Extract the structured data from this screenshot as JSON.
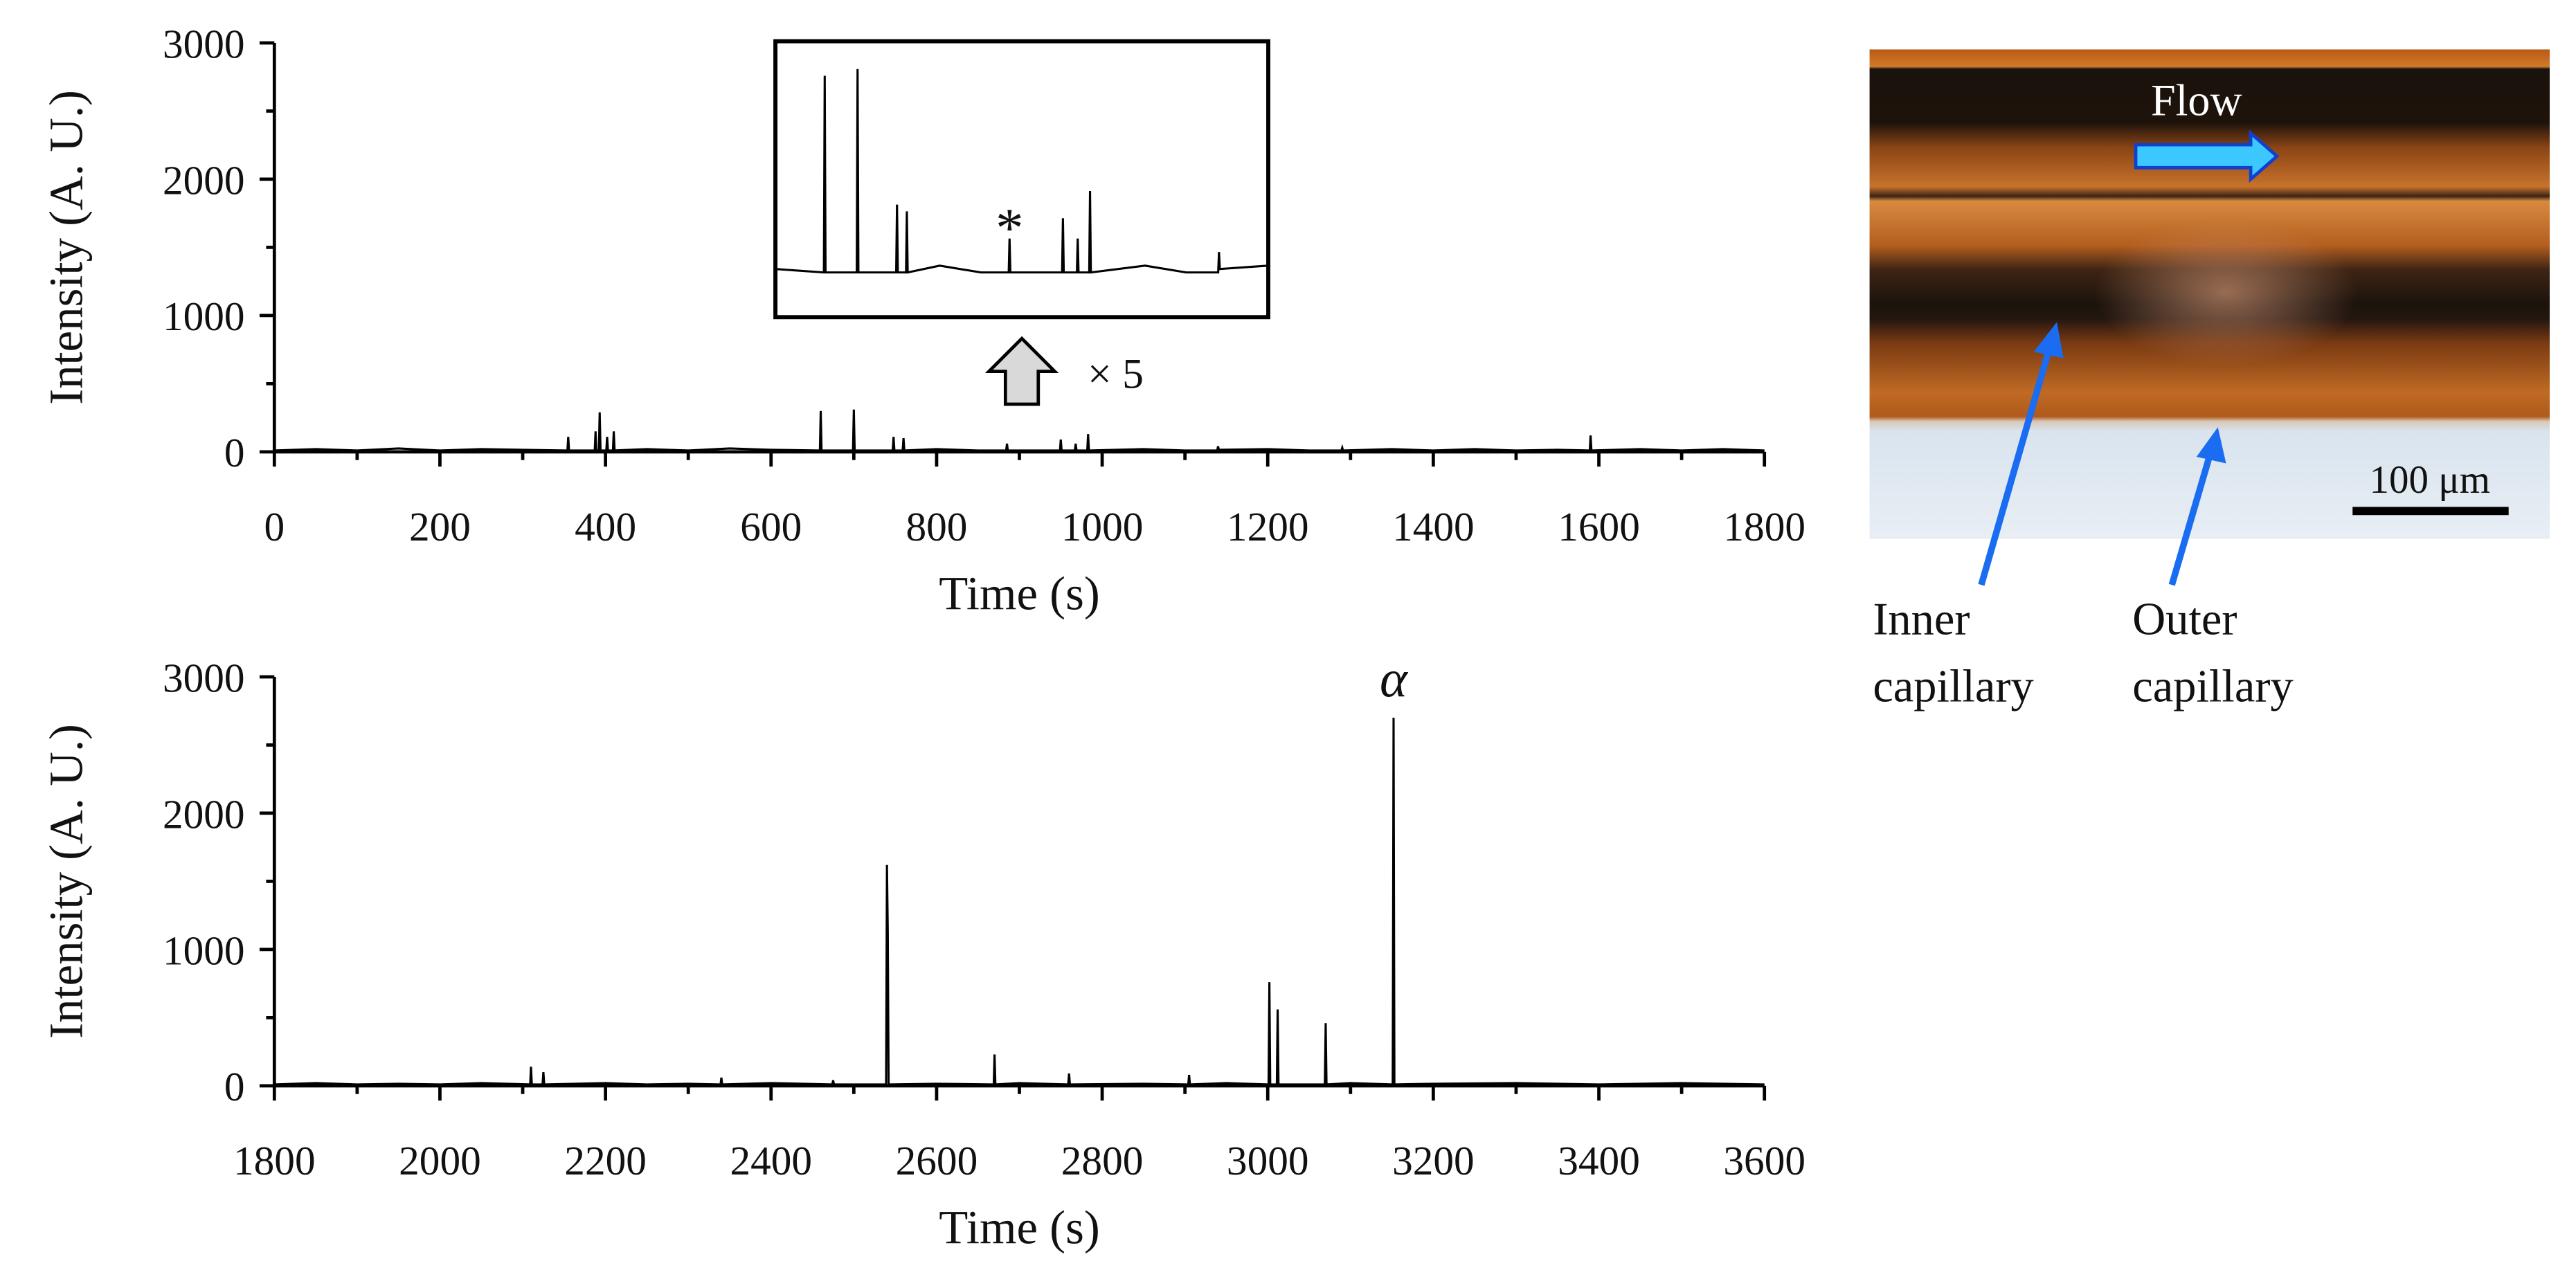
{
  "chart_data": [
    {
      "type": "line",
      "xlabel": "Time (s)",
      "ylabel": "Intensity (A. U.)",
      "color": "#000000",
      "xlim": [
        0,
        1800
      ],
      "xticks": [
        0,
        200,
        400,
        600,
        800,
        1000,
        1200,
        1400,
        1600,
        1800
      ],
      "xminorticks": [
        100,
        300,
        500,
        700,
        900,
        1100,
        1300,
        1500,
        1700
      ],
      "ylim": [
        0,
        3000
      ],
      "yticks": [
        0,
        1000,
        2000,
        3000
      ],
      "yminorticks": [
        500,
        1500,
        2500
      ],
      "x": [
        0,
        50,
        100,
        150,
        200,
        250,
        300,
        354,
        355,
        356,
        387,
        388,
        389,
        392,
        393,
        394,
        401,
        402,
        403,
        409,
        410,
        411,
        450,
        500,
        550,
        600,
        659,
        660,
        661,
        699,
        700,
        701,
        747,
        748,
        749,
        759,
        760,
        761,
        800,
        850,
        884,
        885,
        886,
        949,
        950,
        951,
        967,
        968,
        969,
        982,
        983,
        984,
        1050,
        1100,
        1139,
        1140,
        1141,
        1200,
        1250,
        1289,
        1290,
        1291,
        1350,
        1400,
        1450,
        1500,
        1550,
        1589,
        1590,
        1591,
        1650,
        1700,
        1750,
        1800
      ],
      "values": [
        10,
        20,
        10,
        25,
        10,
        20,
        15,
        10,
        110,
        10,
        10,
        150,
        10,
        10,
        290,
        10,
        10,
        110,
        10,
        10,
        150,
        10,
        20,
        10,
        25,
        15,
        10,
        300,
        10,
        10,
        310,
        10,
        10,
        110,
        10,
        10,
        100,
        10,
        20,
        10,
        10,
        60,
        10,
        10,
        90,
        10,
        10,
        60,
        10,
        10,
        130,
        10,
        20,
        10,
        10,
        40,
        15,
        20,
        10,
        10,
        30,
        10,
        20,
        10,
        20,
        10,
        15,
        10,
        120,
        10,
        20,
        10,
        20,
        10
      ],
      "inset": {
        "xlim": [
          600,
          1200
        ],
        "ylim": [
          -56,
          351
        ],
        "annotation": "*",
        "annotation_x": 885,
        "magnification": "× 5"
      }
    },
    {
      "type": "line",
      "xlabel": "Time (s)",
      "ylabel": "Intensity (A. U.)",
      "color": "#000000",
      "xlim": [
        1800,
        3600
      ],
      "xticks": [
        1800,
        2000,
        2200,
        2400,
        2600,
        2800,
        3000,
        3200,
        3400,
        3600
      ],
      "xminorticks": [
        1900,
        2100,
        2300,
        2500,
        2700,
        2900,
        3100,
        3300,
        3500
      ],
      "ylim": [
        0,
        3000
      ],
      "yticks": [
        0,
        1000,
        2000,
        3000
      ],
      "yminorticks": [
        500,
        1500,
        2500
      ],
      "x": [
        1800,
        1850,
        1900,
        1950,
        2000,
        2050,
        2109,
        2110,
        2111,
        2124,
        2125,
        2126,
        2200,
        2250,
        2300,
        2339,
        2340,
        2341,
        2400,
        2474,
        2475,
        2476,
        2539,
        2540,
        2541,
        2542,
        2600,
        2669,
        2670,
        2671,
        2700,
        2759,
        2760,
        2761,
        2850,
        2904,
        2905,
        2906,
        2950,
        3001,
        3002,
        3003,
        3011,
        3012,
        3013,
        3069,
        3070,
        3071,
        3100,
        3151,
        3152,
        3153,
        3200,
        3300,
        3400,
        3500,
        3600
      ],
      "values": [
        10,
        20,
        10,
        15,
        10,
        20,
        10,
        140,
        10,
        10,
        100,
        10,
        20,
        10,
        15,
        10,
        60,
        10,
        20,
        10,
        40,
        10,
        10,
        1620,
        1130,
        10,
        15,
        10,
        230,
        10,
        20,
        10,
        90,
        10,
        15,
        10,
        80,
        10,
        20,
        10,
        760,
        10,
        10,
        560,
        10,
        10,
        460,
        10,
        20,
        10,
        2700,
        10,
        15,
        20,
        10,
        20,
        10
      ],
      "annotation": "α",
      "annotation_x": 3152
    }
  ],
  "photo": {
    "flow_label": "Flow",
    "scale_bar": "100 μm",
    "inner": [
      "Inner",
      "capillary"
    ],
    "outer": [
      "Outer",
      "capillary"
    ]
  }
}
